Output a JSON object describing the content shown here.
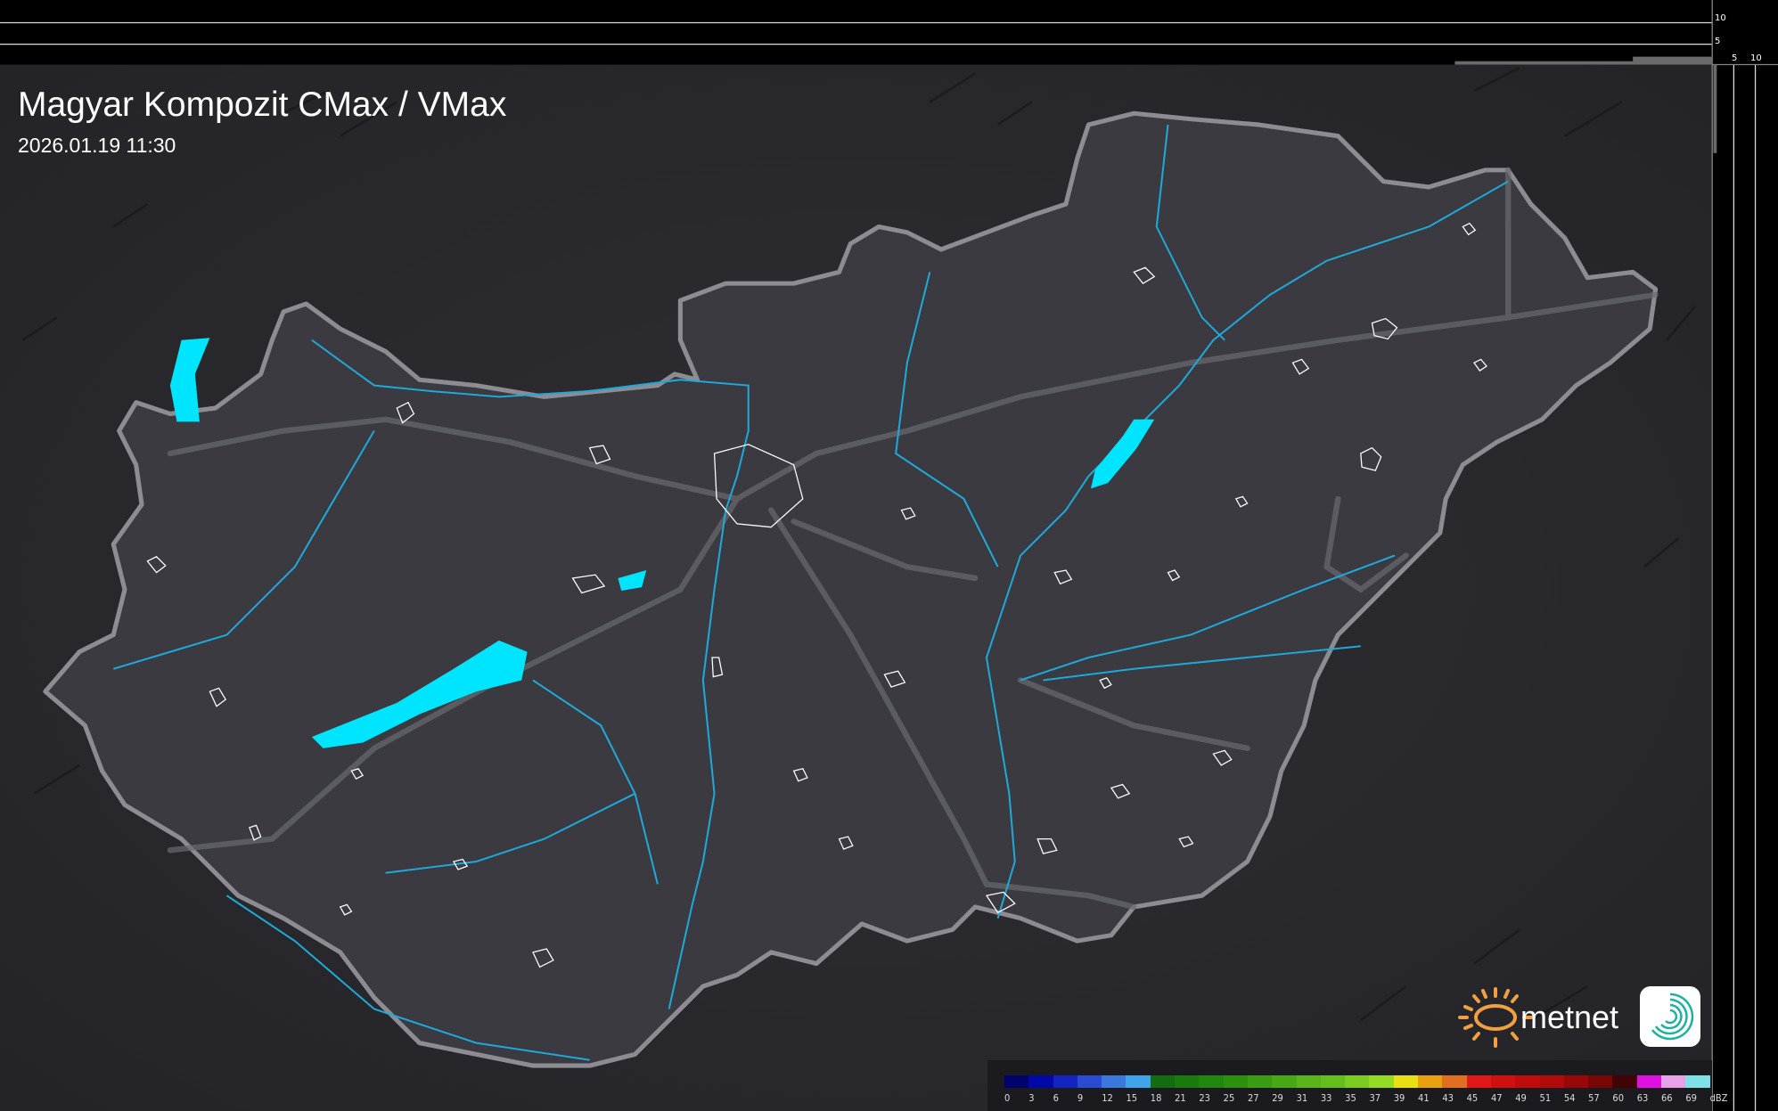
{
  "header": {
    "title": "Magyar Kompozit CMax / VMax",
    "timestamp": "2026.01.19 11:30"
  },
  "profile_axes": {
    "top_ticks": [
      "10",
      "5"
    ],
    "right_ticks": [
      "5",
      "10"
    ]
  },
  "legend": {
    "unit": "dBZ",
    "labels": [
      "0",
      "3",
      "6",
      "9",
      "12",
      "15",
      "18",
      "21",
      "23",
      "25",
      "27",
      "29",
      "31",
      "33",
      "35",
      "37",
      "39",
      "41",
      "43",
      "45",
      "47",
      "49",
      "51",
      "54",
      "57",
      "60",
      "63",
      "66",
      "69"
    ],
    "colors": [
      "#00036b",
      "#0008a8",
      "#1424c0",
      "#2a4ad4",
      "#3a78dc",
      "#40a4e8",
      "#136c12",
      "#1b7a0e",
      "#22850e",
      "#2c900e",
      "#3a9c12",
      "#48a814",
      "#58b418",
      "#66be1c",
      "#7ccc20",
      "#94dc24",
      "#e8e010",
      "#e8a010",
      "#e07020",
      "#e01818",
      "#d01010",
      "#c00c0c",
      "#b00a0a",
      "#980808",
      "#780606",
      "#400404",
      "#e010e0",
      "#e8a0e8",
      "#80e0e8"
    ]
  },
  "brand": {
    "name": "metnet",
    "sun_color": "#f0a040",
    "app_icon_color": "#20b0a0"
  },
  "colors": {
    "background": "#2a2a2e",
    "country_fill": "#38383d",
    "border": "#8a8a90",
    "rivers": "#1fa8d8",
    "lakes": "#00e5ff",
    "cities": "#ffffff"
  }
}
